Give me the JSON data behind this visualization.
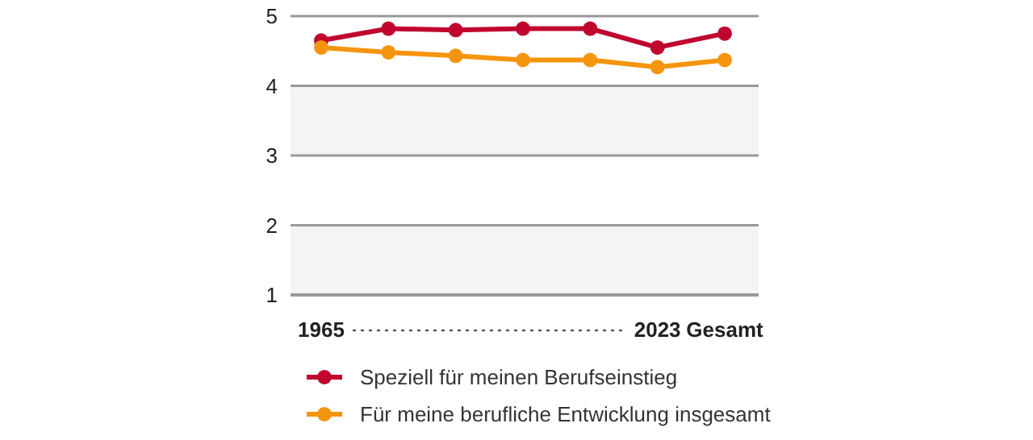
{
  "chart_data": {
    "type": "line",
    "categories": [
      "1965",
      null,
      null,
      null,
      null,
      "2023",
      "Gesamt"
    ],
    "series": [
      {
        "name": "Speziell für meinen Berufseinstieg",
        "color": "#c0062f",
        "values": [
          4.65,
          4.82,
          4.8,
          4.82,
          4.82,
          4.55,
          4.75
        ]
      },
      {
        "name": "Für meine berufliche Entwicklung insgesamt",
        "color": "#f5950f",
        "values": [
          4.55,
          4.48,
          4.43,
          4.37,
          4.37,
          4.27,
          4.37
        ]
      }
    ],
    "ylim": [
      1,
      5
    ],
    "yticks": [
      1,
      2,
      3,
      4,
      5
    ],
    "grid": "y",
    "bands": [
      {
        "axis": "y",
        "from": 1,
        "to": 2,
        "color": "#f4f4f4"
      },
      {
        "axis": "y",
        "from": 3,
        "to": 4,
        "color": "#f4f4f4"
      }
    ],
    "marker": "circle",
    "line_style": "solid",
    "legend": "bottom"
  }
}
